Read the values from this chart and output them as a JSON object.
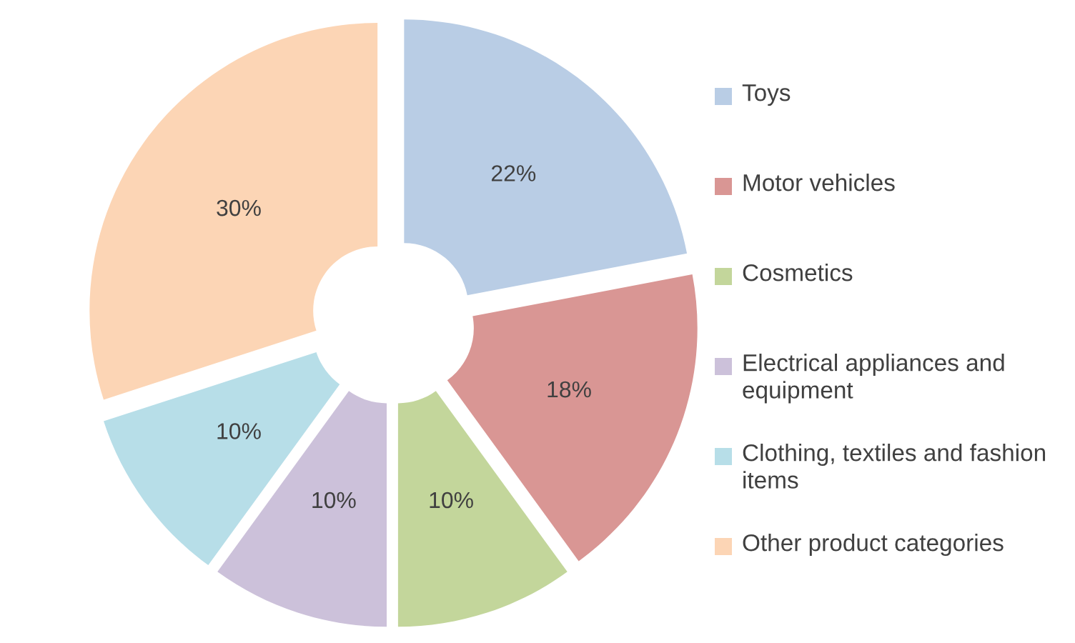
{
  "chart_data": {
    "type": "donut",
    "categories": [
      "Toys",
      "Motor vehicles",
      "Cosmetics",
      "Electrical appliances and equipment",
      "Clothing, textiles and fashion items",
      "Other product categories"
    ],
    "values": [
      22,
      18,
      10,
      10,
      10,
      30
    ],
    "colors": [
      "#b9cde5",
      "#d99694",
      "#c3d69b",
      "#ccc1da",
      "#b7dee8",
      "#fcd5b5"
    ],
    "value_labels": [
      "22%",
      "18%",
      "10%",
      "10%",
      "10%",
      "30%"
    ],
    "legend": "right"
  }
}
